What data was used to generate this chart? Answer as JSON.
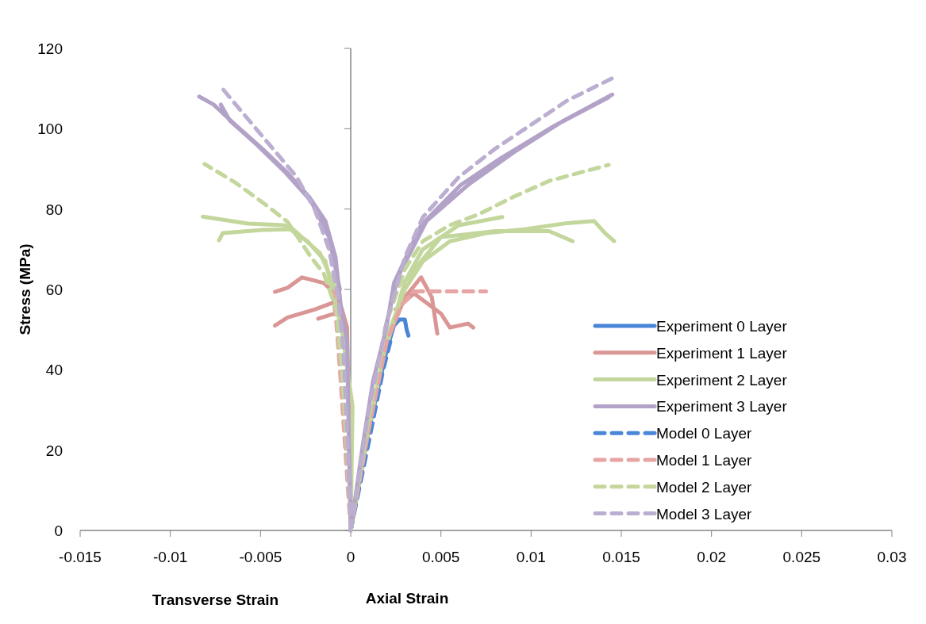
{
  "chart_data": {
    "type": "line",
    "ylabel": "Stress (MPa)",
    "xlabel": "Axial Strain",
    "annotations": [
      "Transverse Strain"
    ],
    "xlim": [
      -0.015,
      0.03
    ],
    "xticks": [
      -0.015,
      -0.01,
      -0.005,
      0,
      0.005,
      0.01,
      0.015,
      0.02,
      0.025,
      0.03
    ],
    "ylim": [
      0,
      120
    ],
    "yticks": [
      0,
      20,
      40,
      60,
      80,
      100,
      120
    ],
    "grid": false,
    "ref_lines": [
      {
        "axis": "x",
        "value": 0,
        "color": "#868686"
      }
    ],
    "legend": "bottom right",
    "series": [
      {
        "name": "Experiment 0 Layer",
        "color": "#4a86d8",
        "line_style": "solid",
        "x": [
          0,
          0.001,
          0.002,
          0.0024,
          0.0027,
          0.003,
          0.0031,
          0.0032
        ],
        "values": [
          0,
          25,
          45,
          51,
          52.5,
          52.5,
          50,
          48.5
        ]
      },
      {
        "name": "Experiment 1 Layer",
        "color": "#d99694",
        "line_style": "solid",
        "x": [
          0,
          0.001,
          0.002,
          0.003,
          0.0039,
          0.0045,
          0.0048,
          null,
          0.0025,
          0.0035,
          0.005,
          0.0055,
          0.0065,
          0.0068,
          null,
          0,
          -0.0002,
          -0.0007,
          -0.0015,
          -0.0027,
          -0.0035,
          -0.0042,
          null,
          -0.0005,
          -0.0008,
          -0.002,
          -0.0035,
          -0.0042,
          null,
          -0.0008,
          -0.0011,
          -0.0018
        ],
        "values": [
          0,
          25,
          47,
          58,
          63,
          58,
          49,
          null,
          55,
          59,
          54,
          50.5,
          51.5,
          50.5,
          null,
          0,
          50.5,
          58.4,
          61.6,
          63,
          60.4,
          59.4,
          null,
          50,
          57,
          55,
          53,
          51,
          null,
          54,
          53.7,
          52.7
        ]
      },
      {
        "name": "Experiment 2 Layer",
        "color": "#c3d69b",
        "line_style": "solid",
        "x": [
          0,
          0.001,
          0.002,
          0.003,
          0.004,
          0.0055,
          0.0075,
          0.0097,
          0.012,
          0.0135,
          0.0141,
          0.0146,
          null,
          0.002,
          0.003,
          0.005,
          0.008,
          0.011,
          0.0123,
          null,
          0.003,
          0.004,
          0.006,
          0.0084,
          null,
          0,
          0.0001,
          -0.0005,
          -0.0014,
          -0.0024,
          -0.0037,
          -0.0057,
          -0.0082,
          null,
          -0.0008,
          -0.0017,
          -0.0032,
          -0.0049,
          -0.0071,
          -0.0073
        ],
        "values": [
          0,
          25,
          48,
          60,
          67,
          72,
          74,
          75,
          76.5,
          77,
          74,
          72,
          null,
          46,
          62,
          73,
          74.5,
          74.5,
          72,
          null,
          62,
          70,
          76,
          78,
          null,
          0,
          31,
          50,
          67,
          72,
          76,
          76.4,
          78.1,
          null,
          60,
          69,
          75,
          74.8,
          74,
          72.2
        ]
      },
      {
        "name": "Experiment 3 Layer",
        "color": "#b3a2c7",
        "line_style": "solid",
        "x": [
          0,
          0.00066,
          0.00123,
          0.00198,
          0.0024,
          0.0039,
          0.0061,
          0.0083,
          0.0112,
          0.0143,
          null,
          0.0019,
          0.0026,
          0.0042,
          0.0065,
          0.009,
          0.0118,
          0.0145,
          null,
          0,
          -0.0002,
          -0.00053,
          -0.00084,
          -0.0014,
          -0.0023,
          -0.0035,
          -0.0049,
          -0.0064,
          -0.0076,
          -0.0084,
          null,
          -0.0006,
          -0.0012,
          -0.0022,
          -0.0036,
          -0.0052,
          -0.0067,
          -0.0072
        ],
        "values": [
          0,
          21,
          37,
          50.5,
          61.6,
          76,
          86,
          92.6,
          100.5,
          107.8,
          null,
          50,
          63,
          77,
          86,
          94,
          102,
          108.5,
          null,
          0,
          47,
          55,
          68,
          77,
          83,
          89,
          95,
          101,
          106,
          108,
          null,
          60,
          73,
          82,
          89,
          96,
          102,
          106
        ]
      },
      {
        "name": "Model 0 Layer",
        "color": "#4a86d8",
        "line_style": "dashed",
        "x": [
          0,
          0.001,
          0.0018,
          0.0022
        ],
        "values": [
          0,
          22,
          40,
          47
        ]
      },
      {
        "name": "Model 1 Layer",
        "color": "#e6a4a2",
        "line_style": "dashed",
        "x": [
          0,
          0.001,
          0.002,
          0.0028,
          0.0035,
          0.0075,
          null,
          0,
          -0.0003,
          -0.0006,
          -0.0008,
          -0.001
        ],
        "values": [
          0,
          25,
          47,
          56,
          59.5,
          59.5,
          null,
          0,
          20,
          40,
          52,
          59.5
        ]
      },
      {
        "name": "Model 2 Layer",
        "color": "#c3d69b",
        "line_style": "dashed",
        "x": [
          0,
          0.001,
          0.002,
          0.003,
          0.004,
          0.0055,
          0.0071,
          0.009,
          0.011,
          0.0143,
          null,
          0,
          -0.0002,
          -0.0005,
          -0.0008,
          -0.0015,
          -0.0022,
          -0.0035,
          -0.0046,
          -0.0064,
          -0.0081
        ],
        "values": [
          0,
          28,
          52,
          65,
          72,
          76,
          78.7,
          83,
          87,
          91,
          null,
          0,
          20,
          40,
          55,
          64,
          68,
          76.8,
          80.7,
          86.6,
          91.2
        ]
      },
      {
        "name": "Model 3 Layer",
        "color": "#bcaed0",
        "line_style": "dashed",
        "x": [
          0,
          0.001,
          0.002,
          0.003,
          0.004,
          0.006,
          0.008,
          0.01,
          0.012,
          0.0147,
          null,
          0,
          -0.0002,
          -0.0004,
          -0.0007,
          -0.0012,
          -0.002,
          -0.003,
          -0.0045,
          -0.006,
          -0.0073
        ],
        "values": [
          0,
          30,
          52,
          68,
          78,
          88,
          95,
          101,
          107,
          113,
          null,
          0,
          25,
          45,
          58,
          70,
          80,
          88,
          96,
          104,
          111
        ]
      }
    ]
  }
}
